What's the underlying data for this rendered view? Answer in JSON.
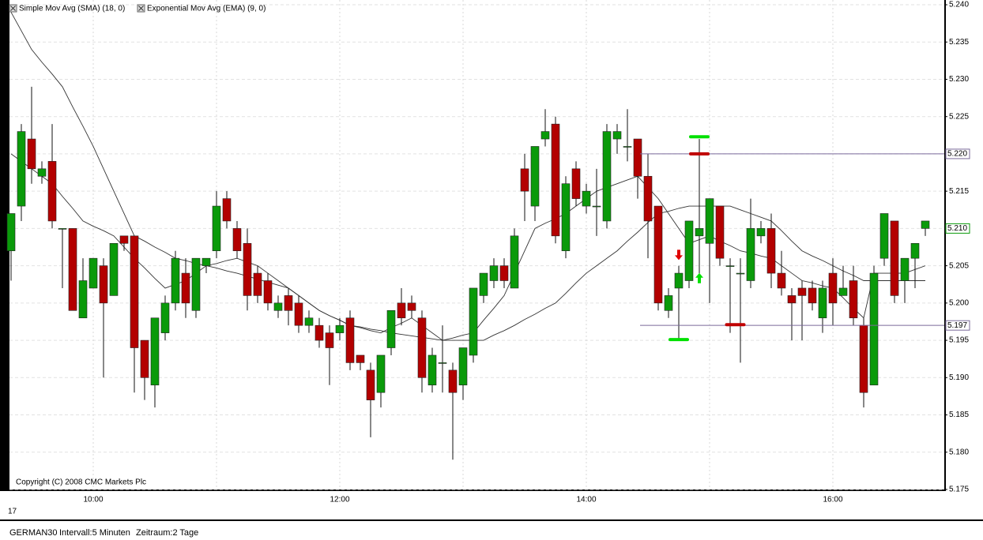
{
  "chart_data": {
    "type": "candlestick",
    "indicators": [
      "Simple Mov Avg (SMA) (18, 0)",
      "Exponential Mov Avg (EMA) (9, 0)"
    ],
    "copyright": "Copyright (C) 2008 CMC Markets Plc",
    "date_label": "17",
    "status": {
      "symbol": "GERMAN30",
      "interval": "Intervall:5 Minuten",
      "period": "Zeitraum:2 Tage"
    },
    "up_color": "#0a9a0a",
    "down_color": "#b30000",
    "categories": [
      null,
      null,
      null,
      null,
      null,
      null,
      null,
      null,
      "10:00",
      null,
      null,
      null,
      null,
      null,
      null,
      null,
      null,
      null,
      null,
      null,
      null,
      null,
      null,
      null,
      null,
      null,
      null,
      null,
      null,
      null,
      null,
      null,
      "12:00",
      null,
      null,
      null,
      null,
      null,
      null,
      null,
      null,
      null,
      null,
      null,
      null,
      null,
      null,
      null,
      null,
      null,
      null,
      null,
      null,
      null,
      null,
      null,
      "14:00",
      null,
      null,
      null,
      null,
      null,
      null,
      null,
      null,
      null,
      null,
      null,
      null,
      null,
      null,
      null,
      null,
      null,
      null,
      null,
      null,
      null,
      null,
      null,
      "16:00",
      null,
      null,
      null,
      null,
      null,
      null,
      null,
      null,
      null
    ],
    "open": [
      5.207,
      5.213,
      5.222,
      5.217,
      5.219,
      5.21,
      5.21,
      5.198,
      5.202,
      5.205,
      5.201,
      5.209,
      5.209,
      5.195,
      5.189,
      5.196,
      5.2,
      5.204,
      5.199,
      5.205,
      5.207,
      5.214,
      5.21,
      5.208,
      5.204,
      5.203,
      5.199,
      5.201,
      5.2,
      5.197,
      5.197,
      5.196,
      5.196,
      5.198,
      5.193,
      5.191,
      5.188,
      5.194,
      5.2,
      5.2,
      5.198,
      5.189,
      5.192,
      5.191,
      5.189,
      5.193,
      5.201,
      5.203,
      5.205,
      5.202,
      5.218,
      5.213,
      5.222,
      5.224,
      5.207,
      5.218,
      5.213,
      5.213,
      5.211,
      5.222,
      5.221,
      5.222,
      5.217,
      5.213,
      5.199,
      5.202,
      5.203,
      5.209,
      5.208,
      5.213,
      5.205,
      5.204,
      5.203,
      5.209,
      5.21,
      5.204,
      5.201,
      5.202,
      5.202,
      5.198,
      5.204,
      5.201,
      5.203,
      5.197,
      5.189,
      5.206,
      5.211,
      5.203,
      5.206,
      5.21
    ],
    "high": [
      5.212,
      5.224,
      5.229,
      5.219,
      5.224,
      5.21,
      5.21,
      5.206,
      5.206,
      5.206,
      5.208,
      5.209,
      5.209,
      5.195,
      5.198,
      5.201,
      5.207,
      5.206,
      5.206,
      5.206,
      5.215,
      5.215,
      5.211,
      5.21,
      5.205,
      5.204,
      5.201,
      5.202,
      5.201,
      5.199,
      5.198,
      5.197,
      5.198,
      5.199,
      5.193,
      5.192,
      5.193,
      5.199,
      5.202,
      5.201,
      5.199,
      5.194,
      5.197,
      5.192,
      5.194,
      5.202,
      5.204,
      5.206,
      5.206,
      5.21,
      5.22,
      5.221,
      5.226,
      5.225,
      5.217,
      5.219,
      5.216,
      5.218,
      5.224,
      5.224,
      5.226,
      5.222,
      5.22,
      5.213,
      5.202,
      5.205,
      5.211,
      5.222,
      5.214,
      5.213,
      5.206,
      5.206,
      5.214,
      5.211,
      5.212,
      5.207,
      5.202,
      5.203,
      5.203,
      5.203,
      5.206,
      5.205,
      5.205,
      5.198,
      5.205,
      5.212,
      5.211,
      5.206,
      5.208,
      5.211
    ],
    "low": [
      5.203,
      5.211,
      5.216,
      5.216,
      5.21,
      5.202,
      5.199,
      5.198,
      5.202,
      5.19,
      5.201,
      5.207,
      5.188,
      5.187,
      5.186,
      5.195,
      5.199,
      5.198,
      5.198,
      5.204,
      5.206,
      5.21,
      5.206,
      5.199,
      5.2,
      5.199,
      5.198,
      5.197,
      5.196,
      5.196,
      5.194,
      5.189,
      5.195,
      5.191,
      5.191,
      5.182,
      5.186,
      5.193,
      5.197,
      5.198,
      5.188,
      5.188,
      5.188,
      5.179,
      5.187,
      5.192,
      5.2,
      5.202,
      5.202,
      5.202,
      5.211,
      5.211,
      5.221,
      5.208,
      5.206,
      5.213,
      5.212,
      5.209,
      5.21,
      5.22,
      5.219,
      5.214,
      5.206,
      5.199,
      5.198,
      5.195,
      5.202,
      5.204,
      5.2,
      5.205,
      5.196,
      5.192,
      5.202,
      5.208,
      5.202,
      5.201,
      5.195,
      5.195,
      5.199,
      5.196,
      5.197,
      5.201,
      5.197,
      5.186,
      5.189,
      5.205,
      5.2,
      5.2,
      5.202,
      5.209
    ],
    "close": [
      5.212,
      5.223,
      5.218,
      5.218,
      5.211,
      5.21,
      5.199,
      5.203,
      5.206,
      5.2,
      5.208,
      5.208,
      5.194,
      5.19,
      5.198,
      5.2,
      5.206,
      5.2,
      5.206,
      5.206,
      5.213,
      5.211,
      5.207,
      5.201,
      5.201,
      5.2,
      5.2,
      5.199,
      5.197,
      5.198,
      5.195,
      5.194,
      5.197,
      5.192,
      5.192,
      5.187,
      5.193,
      5.199,
      5.198,
      5.199,
      5.19,
      5.193,
      5.192,
      5.188,
      5.194,
      5.202,
      5.204,
      5.205,
      5.203,
      5.209,
      5.215,
      5.221,
      5.223,
      5.209,
      5.216,
      5.214,
      5.215,
      5.213,
      5.223,
      5.223,
      5.221,
      5.217,
      5.211,
      5.2,
      5.201,
      5.204,
      5.211,
      5.21,
      5.214,
      5.206,
      5.205,
      5.204,
      5.21,
      5.21,
      5.204,
      5.202,
      5.2,
      5.201,
      5.2,
      5.202,
      5.2,
      5.202,
      5.198,
      5.188,
      5.204,
      5.212,
      5.201,
      5.206,
      5.208,
      5.211
    ],
    "series": [
      {
        "name": "Simple Mov Avg (SMA) (18, 0)",
        "color": "#333333",
        "values": [
          5.239,
          5.2365,
          5.234,
          5.2323,
          5.2307,
          5.229,
          5.2263,
          5.2237,
          5.221,
          5.218,
          5.215,
          5.212,
          5.209,
          5.2083,
          5.2075,
          5.2068,
          5.206,
          5.2057,
          5.2053,
          5.205,
          5.2047,
          5.2043,
          5.204,
          5.2036,
          5.2032,
          5.2028,
          5.2024,
          5.202,
          5.201,
          5.2,
          5.199,
          5.1983,
          5.1977,
          5.197,
          5.1968,
          5.1965,
          5.1963,
          5.196,
          5.1958,
          5.1956,
          5.1954,
          5.1952,
          5.195,
          5.195,
          5.195,
          5.195,
          5.195,
          5.1957,
          5.1963,
          5.197,
          5.1978,
          5.1985,
          5.1993,
          5.2,
          5.2013,
          5.2027,
          5.204,
          5.205,
          5.206,
          5.207,
          5.2083,
          5.2095,
          5.2108,
          5.212,
          5.2123,
          5.2127,
          5.213,
          5.213,
          5.213,
          5.213,
          5.213,
          5.2125,
          5.212,
          5.2115,
          5.211,
          5.2097,
          5.2083,
          5.207,
          5.2063,
          5.2057,
          5.205,
          5.2043,
          5.2037,
          5.203,
          5.203,
          5.203,
          5.203,
          5.203,
          5.203,
          5.203
        ]
      },
      {
        "name": "Exponential Mov Avg (EMA) (9, 0)",
        "color": "#333333",
        "values": [
          5.22,
          5.219,
          5.218,
          5.217,
          5.216,
          5.2143,
          5.2127,
          5.211,
          5.2103,
          5.2097,
          5.209,
          5.2075,
          5.206,
          5.2047,
          5.2033,
          5.202,
          5.2025,
          5.203,
          5.204,
          5.205,
          5.2053,
          5.2057,
          5.206,
          5.2055,
          5.205,
          5.204,
          5.203,
          5.202,
          5.201,
          5.2,
          5.199,
          5.1983,
          5.1977,
          5.197,
          5.1967,
          5.1963,
          5.196,
          5.1967,
          5.1973,
          5.198,
          5.197,
          5.196,
          5.195,
          5.1953,
          5.1957,
          5.196,
          5.1977,
          5.1993,
          5.201,
          5.204,
          5.207,
          5.21,
          5.2107,
          5.2113,
          5.212,
          5.213,
          5.214,
          5.215,
          5.2155,
          5.216,
          5.2165,
          5.217,
          5.2155,
          5.214,
          5.212,
          5.21,
          5.208,
          5.2085,
          5.209,
          5.2083,
          5.2077,
          5.207,
          5.2067,
          5.2063,
          5.206,
          5.205,
          5.204,
          5.203,
          5.2027,
          5.2023,
          5.202,
          5.2007,
          5.1993,
          5.198,
          5.204,
          5.204,
          5.204,
          5.204,
          5.2045,
          5.205
        ]
      }
    ],
    "levels": [
      {
        "value": 5.22,
        "label": "5.220",
        "from": 61,
        "color": "#7a6a9a"
      },
      {
        "value": 5.197,
        "label": "5.197",
        "from": 61,
        "color": "#7a6a9a"
      }
    ],
    "last_price": {
      "value": 5.21,
      "label": "5.210",
      "color": "#0a9a0a"
    },
    "markers": [
      {
        "at": 65,
        "value": 5.2064,
        "shape": "arrow-down",
        "color": "#e00000"
      },
      {
        "at": 67,
        "value": 5.2034,
        "shape": "arrow-up",
        "color": "#00e000"
      },
      {
        "at": 67,
        "value": 5.2223,
        "shape": "dash",
        "color": "#00e000"
      },
      {
        "at": 67,
        "value": 5.22,
        "shape": "dash",
        "color": "#c00000"
      },
      {
        "at": 65,
        "value": 5.1951,
        "shape": "dash",
        "color": "#00e000"
      },
      {
        "at": 70.5,
        "value": 5.1971,
        "shape": "dash",
        "color": "#c00000"
      }
    ],
    "ylim": [
      5.175,
      5.24
    ],
    "yticks": [
      {
        "value": 5.24,
        "label": "5.240"
      },
      {
        "value": 5.235,
        "label": "5.235"
      },
      {
        "value": 5.23,
        "label": "5.230"
      },
      {
        "value": 5.225,
        "label": "5.225"
      },
      {
        "value": 5.22,
        "label": "5.220"
      },
      {
        "value": 5.215,
        "label": "5.215"
      },
      {
        "value": 5.21,
        "label": "5.210"
      },
      {
        "value": 5.205,
        "label": "5.205"
      },
      {
        "value": 5.2,
        "label": "5.200"
      },
      {
        "value": 5.195,
        "label": "5.195"
      },
      {
        "value": 5.19,
        "label": "5.190"
      },
      {
        "value": 5.185,
        "label": "5.185"
      },
      {
        "value": 5.18,
        "label": "5.180"
      },
      {
        "value": 5.175,
        "label": "5.175"
      }
    ],
    "grid": true
  }
}
